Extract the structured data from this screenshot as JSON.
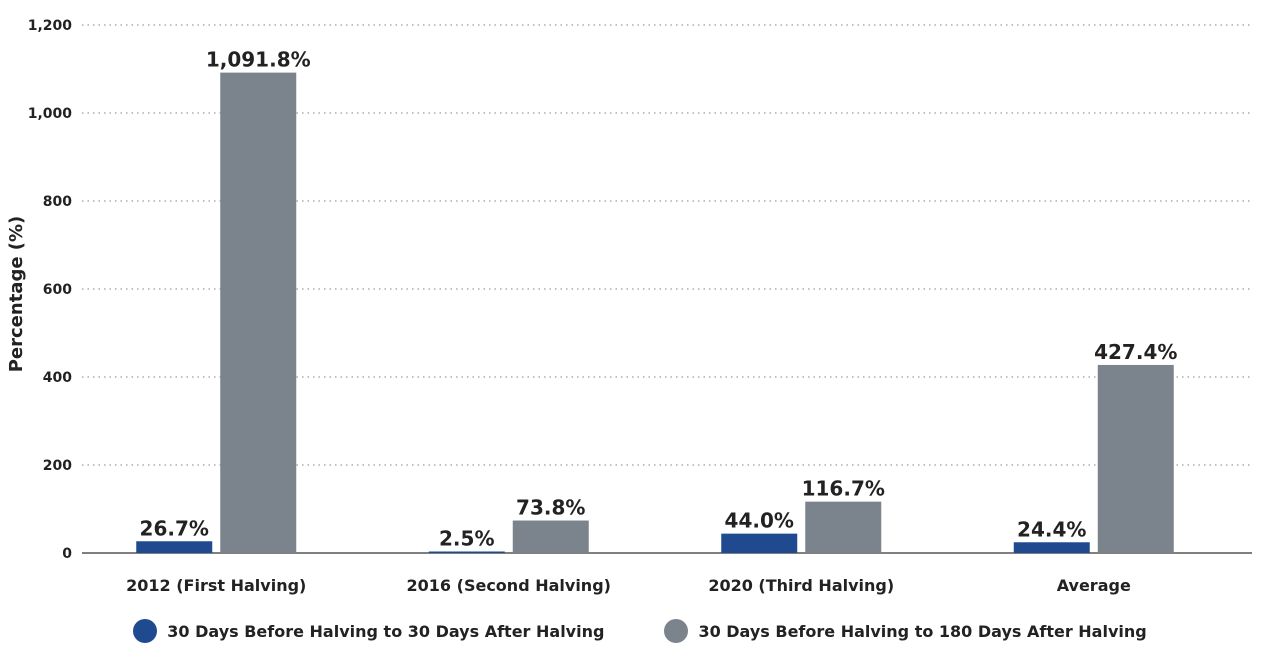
{
  "colors": {
    "series_1": "#1f4a8f",
    "series_2": "#7b848c",
    "grid": "#9a9a9a",
    "axis": "#555555",
    "text": "#222222"
  },
  "chart_data": {
    "type": "bar",
    "title": "",
    "xlabel": "",
    "ylabel": "Percentage (%)",
    "ylim": [
      0,
      1200
    ],
    "yticks": [
      0,
      200,
      400,
      600,
      800,
      1000,
      1200
    ],
    "ytick_labels": [
      "0",
      "200",
      "400",
      "600",
      "800",
      "1,000",
      "1,200"
    ],
    "grid": "horizontal-dotted",
    "legend_position": "bottom",
    "categories": [
      "2012 (First Halving)",
      "2016 (Second Halving)",
      "2020 (Third Halving)",
      "Average"
    ],
    "series": [
      {
        "name": "30 Days Before Halving to 30 Days After Halving",
        "values": [
          26.7,
          2.5,
          44.0,
          24.4
        ],
        "labels": [
          "26.7%",
          "2.5%",
          "44.0%",
          "24.4%"
        ]
      },
      {
        "name": "30 Days Before Halving to 180 Days After Halving",
        "values": [
          1091.8,
          73.8,
          116.7,
          427.4
        ],
        "labels": [
          "1,091.8%",
          "73.8%",
          "116.7%",
          "427.4%"
        ]
      }
    ]
  }
}
